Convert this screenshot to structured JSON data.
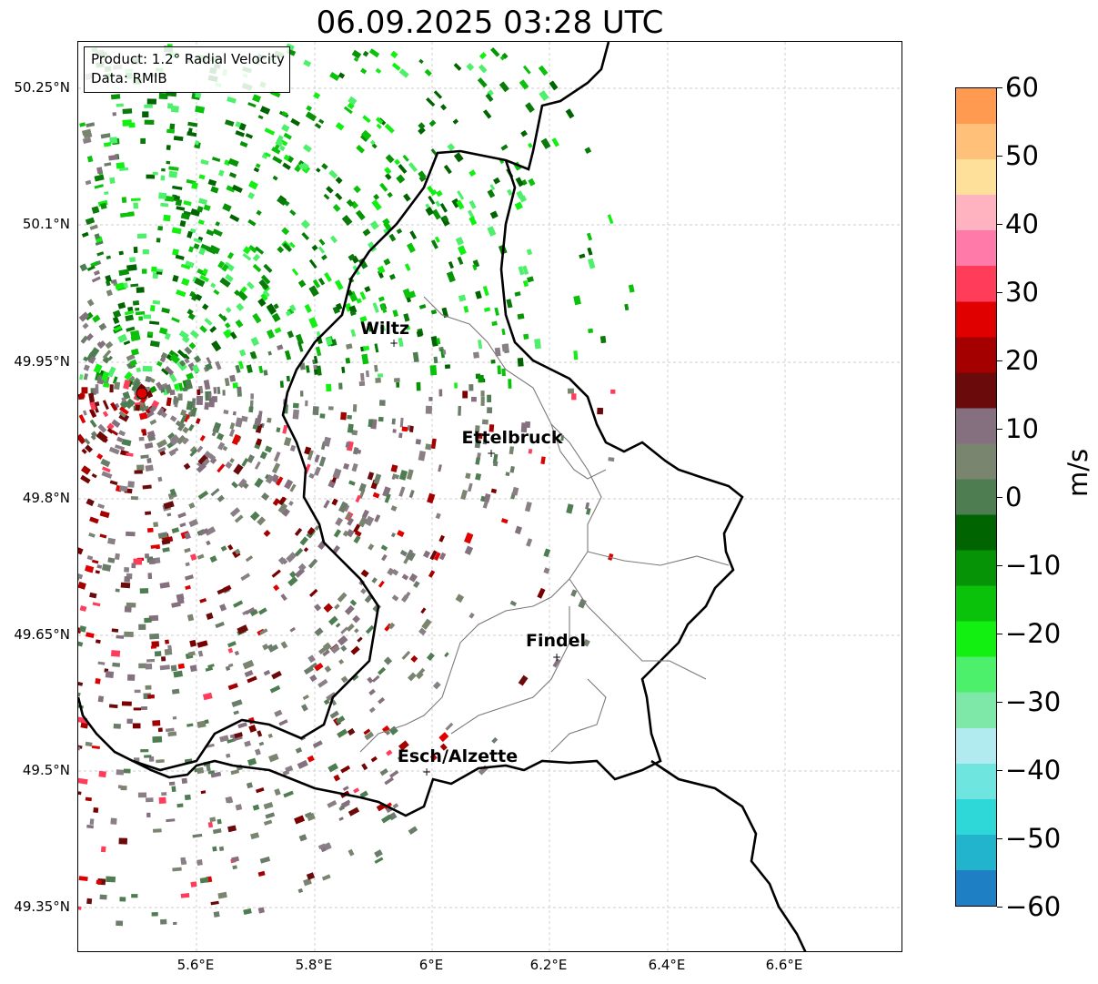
{
  "title": "06.09.2025 03:28 UTC",
  "info_box": {
    "product": "Product: 1.2° Radial Velocity",
    "data": "Data: RMIB"
  },
  "lat_ticks": [
    "50.25°N",
    "50.1°N",
    "49.95°N",
    "49.8°N",
    "49.65°N",
    "49.5°N",
    "49.35°N"
  ],
  "lon_ticks": [
    "5.6°E",
    "5.8°E",
    "6°E",
    "6.2°E",
    "6.4°E",
    "6.6°E"
  ],
  "cities": [
    {
      "name": "Wiltz"
    },
    {
      "name": "Ettelbruck"
    },
    {
      "name": "Findel"
    },
    {
      "name": "Esch/Alzette"
    }
  ],
  "colorbar": {
    "label": "m/s",
    "ticks": [
      "60",
      "50",
      "40",
      "30",
      "20",
      "10",
      "0",
      "−10",
      "−20",
      "−30",
      "−40",
      "−50",
      "−60"
    ],
    "min": -60,
    "max": 60,
    "colors": [
      "#1f7fc4",
      "#22b4cc",
      "#2ed8d8",
      "#6fe5e0",
      "#b2ebef",
      "#7ee8a8",
      "#4cf06a",
      "#12f012",
      "#0bc20b",
      "#069306",
      "#006400",
      "#4e7d52",
      "#7a8570",
      "#84707e",
      "#6b0a0a",
      "#a50000",
      "#e00000",
      "#ff3c5a",
      "#ff7aa8",
      "#ffb2c0",
      "#ffe09a",
      "#ffc07a",
      "#ff9a50"
    ]
  },
  "radar_site_color": "#e00000"
}
